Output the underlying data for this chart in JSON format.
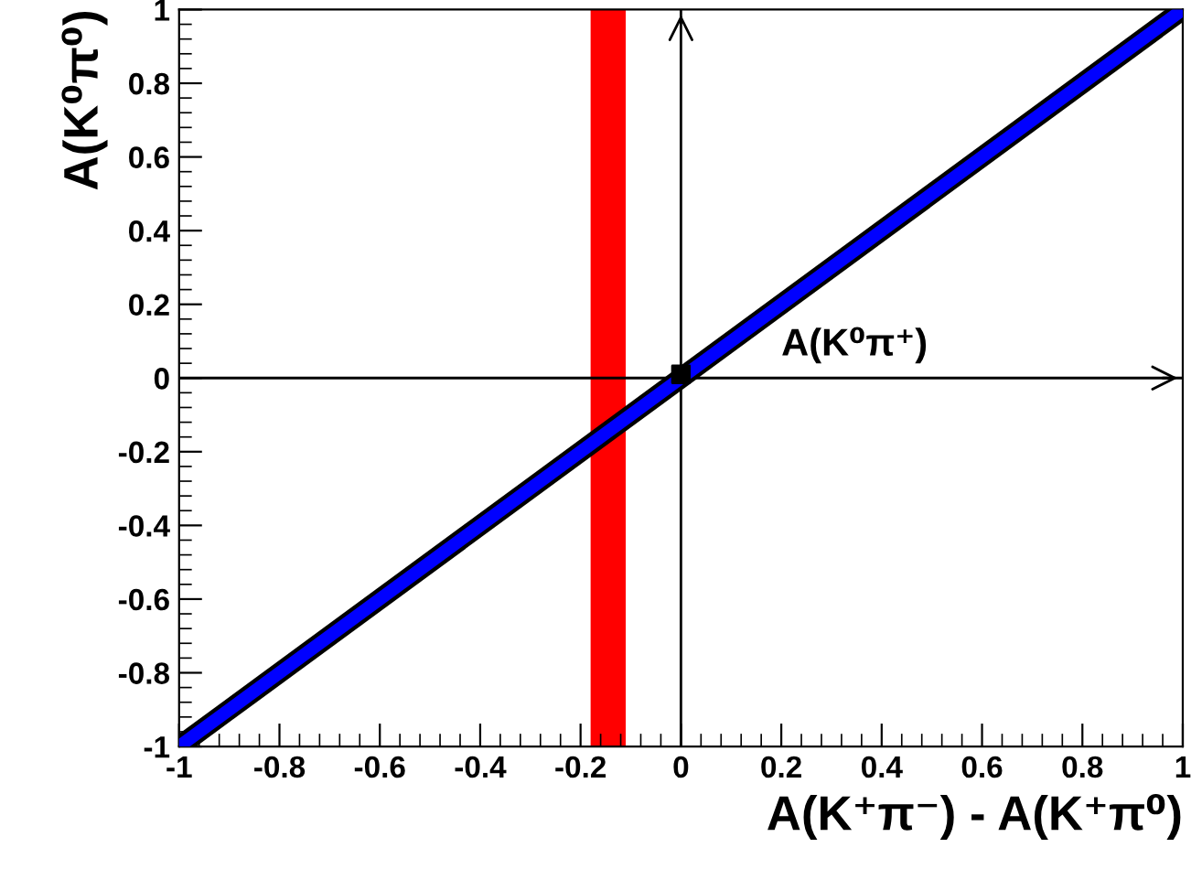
{
  "chart_data": {
    "type": "line",
    "xlabel": "A(K⁺π⁻) - A(K⁺π⁰)",
    "ylabel": "A(K⁰π⁰)",
    "x": [
      -1,
      1
    ],
    "series": [
      {
        "color": "#0000ff",
        "values": [
          -1,
          1
        ]
      },
      {
        "type": "scatter",
        "x": [
          0
        ],
        "values": [
          0.01
        ],
        "color": "#000000",
        "marker": "square"
      }
    ],
    "xlim": [
      -1,
      1
    ],
    "ylim": [
      -1,
      1
    ],
    "xticks": [
      -1,
      -0.8,
      -0.6,
      -0.4,
      -0.2,
      0,
      0.2,
      0.4,
      0.6,
      0.8,
      1
    ],
    "yticks": [
      -1,
      -0.8,
      -0.6,
      -0.4,
      -0.2,
      0,
      0.2,
      0.4,
      0.6,
      0.8,
      1
    ],
    "bands": [
      {
        "axis": "x",
        "from": -0.18,
        "to": -0.11,
        "color": "#ff0000"
      }
    ],
    "ref_lines": [
      {
        "axis": "x",
        "value": 0,
        "color": "#000000"
      },
      {
        "axis": "y",
        "value": 0,
        "color": "#000000",
        "label": "A(K⁰π⁺)"
      }
    ],
    "grid": false,
    "legend": false,
    "marker": "none"
  }
}
